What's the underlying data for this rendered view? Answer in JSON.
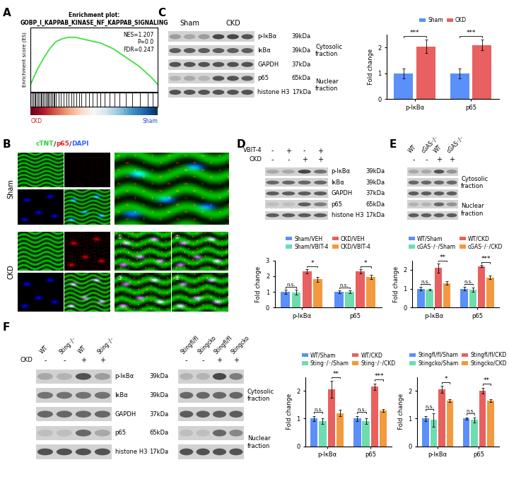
{
  "panels": [
    "A",
    "B",
    "C",
    "D",
    "E",
    "F"
  ],
  "chart_data": [
    {
      "type": "line",
      "title": "Enrichment plot:",
      "subtitle": "GOBP_I_KAPPAB_KINASE_NF_KAPPAB_SIGNALING",
      "ylabel": "Enrichment score (ES)",
      "annotations": [
        "NES=1.207",
        "P=0.0",
        "FDR=0.247"
      ],
      "rank_labels": [
        "CKD",
        "Sham"
      ],
      "color": "#3fe03f",
      "tick_labels": false,
      "x": [
        0,
        5,
        10,
        15,
        20,
        25,
        30,
        35,
        40,
        45,
        50,
        55,
        60,
        65,
        70,
        75,
        80,
        85,
        90,
        95,
        100
      ],
      "values": [
        0.0,
        0.1,
        0.18,
        0.25,
        0.3,
        0.32,
        0.33,
        0.33,
        0.32,
        0.31,
        0.3,
        0.29,
        0.27,
        0.25,
        0.22,
        0.19,
        0.16,
        0.13,
        0.09,
        0.05,
        0.0
      ],
      "hits": [
        1,
        2,
        3,
        4,
        5,
        6,
        7,
        8,
        9,
        10,
        11,
        12,
        13,
        14,
        15,
        16,
        17,
        18,
        19,
        20,
        22,
        24,
        26,
        28,
        30,
        32,
        34,
        36,
        38,
        40,
        43,
        46,
        49,
        52,
        55,
        58,
        62,
        66,
        70,
        75,
        80,
        86,
        92,
        96
      ],
      "xlim": [
        0,
        100
      ],
      "ylim": [
        -0.05,
        0.4
      ]
    },
    {
      "type": "bar",
      "ylabel": "Fold change",
      "categories": [
        "p-IκBα",
        "p65"
      ],
      "series": [
        {
          "name": "Sham",
          "color": "#5b8ff9",
          "values": [
            1.0,
            1.0
          ],
          "errors": [
            0.2,
            0.2
          ]
        },
        {
          "name": "CKD",
          "color": "#e8605f",
          "values": [
            2.05,
            2.1
          ],
          "errors": [
            0.25,
            0.2
          ]
        }
      ],
      "annotations": [
        {
          "category": "p-IκBα",
          "between": [
            "Sham",
            "CKD"
          ],
          "text": "***"
        },
        {
          "category": "p65",
          "between": [
            "Sham",
            "CKD"
          ],
          "text": "***"
        }
      ],
      "ylim": [
        0,
        2.5
      ],
      "yticks": [
        0,
        1,
        2
      ],
      "legend": "upper center"
    },
    {
      "type": "bar",
      "ylabel": "Fold change",
      "categories": [
        "p-IκBα",
        "p65"
      ],
      "series": [
        {
          "name": "Sham/VEH",
          "color": "#5b8ff9",
          "values": [
            1.0,
            1.0
          ],
          "errors": [
            0.12,
            0.1
          ]
        },
        {
          "name": "Sham/VBIT-4",
          "color": "#6fdcb0",
          "values": [
            0.97,
            1.0
          ],
          "errors": [
            0.15,
            0.08
          ]
        },
        {
          "name": "CKD/VEH",
          "color": "#e8605f",
          "values": [
            2.3,
            2.3
          ],
          "errors": [
            0.15,
            0.12
          ]
        },
        {
          "name": "CKD/VBIT-4",
          "color": "#f29a3f",
          "values": [
            1.8,
            1.95
          ],
          "errors": [
            0.15,
            0.12
          ]
        }
      ],
      "annotations": [
        {
          "category": "p-IκBα",
          "between": [
            "Sham/VEH",
            "Sham/VBIT-4"
          ],
          "text": "n.s."
        },
        {
          "category": "p-IκBα",
          "between": [
            "CKD/VEH",
            "CKD/VBIT-4"
          ],
          "text": "*"
        },
        {
          "category": "p65",
          "between": [
            "Sham/VEH",
            "Sham/VBIT-4"
          ],
          "text": "n.s."
        },
        {
          "category": "p65",
          "between": [
            "CKD/VEH",
            "CKD/VBIT-4"
          ],
          "text": "*"
        }
      ],
      "ylim": [
        0,
        3
      ],
      "yticks": [
        0,
        1,
        2,
        3
      ],
      "legend": "upper center"
    },
    {
      "type": "bar",
      "ylabel": "Fold change",
      "categories": [
        "p-IκBα",
        "p65"
      ],
      "series": [
        {
          "name": "WT/Sham",
          "color": "#5b8ff9",
          "values": [
            1.0,
            1.0
          ],
          "errors": [
            0.1,
            0.1
          ]
        },
        {
          "name": "cGAS⁻/⁻/Sham",
          "color": "#6fdcb0",
          "values": [
            0.95,
            0.95
          ],
          "errors": [
            0.05,
            0.1
          ]
        },
        {
          "name": "WT/CKD",
          "color": "#e8605f",
          "values": [
            2.1,
            2.2
          ],
          "errors": [
            0.25,
            0.05
          ]
        },
        {
          "name": "cGAS⁻/⁻/CKD",
          "color": "#f29a3f",
          "values": [
            1.3,
            1.6
          ],
          "errors": [
            0.1,
            0.08
          ]
        }
      ],
      "annotations": [
        {
          "category": "p-IκBα",
          "between": [
            "WT/Sham",
            "cGAS⁻/⁻/Sham"
          ],
          "text": "n.s."
        },
        {
          "category": "p-IκBα",
          "between": [
            "WT/CKD",
            "cGAS⁻/⁻/CKD"
          ],
          "text": "**"
        },
        {
          "category": "p65",
          "between": [
            "WT/Sham",
            "cGAS⁻/⁻/Sham"
          ],
          "text": "n.s."
        },
        {
          "category": "p65",
          "between": [
            "WT/CKD",
            "cGAS⁻/⁻/CKD"
          ],
          "text": "***"
        }
      ],
      "ylim": [
        0,
        2.5
      ],
      "yticks": [
        0,
        1,
        2
      ],
      "legend": "upper center"
    },
    {
      "type": "bar",
      "ylabel": "Fold change",
      "categories": [
        "p-IκBα",
        "p65"
      ],
      "series": [
        {
          "name": "WT/Sham",
          "color": "#5b8ff9",
          "values": [
            1.0,
            1.0
          ],
          "errors": [
            0.1,
            0.1
          ]
        },
        {
          "name": "Sting⁻/⁻/Sham",
          "color": "#6fdcb0",
          "values": [
            0.9,
            0.9
          ],
          "errors": [
            0.1,
            0.1
          ]
        },
        {
          "name": "WT/CKD",
          "color": "#e8605f",
          "values": [
            2.05,
            2.15
          ],
          "errors": [
            0.3,
            0.12
          ]
        },
        {
          "name": "Sting⁻/⁻/CKD",
          "color": "#f29a3f",
          "values": [
            1.2,
            1.3
          ],
          "errors": [
            0.12,
            0.05
          ]
        }
      ],
      "annotations": [
        {
          "category": "p-IκBα",
          "between": [
            "WT/Sham",
            "Sting⁻/⁻/Sham"
          ],
          "text": "n.s."
        },
        {
          "category": "p-IκBα",
          "between": [
            "WT/CKD",
            "Sting⁻/⁻/CKD"
          ],
          "text": "**"
        },
        {
          "category": "p65",
          "between": [
            "WT/Sham",
            "Sting⁻/⁻/Sham"
          ],
          "text": "n.s."
        },
        {
          "category": "p65",
          "between": [
            "WT/CKD",
            "Sting⁻/⁻/CKD"
          ],
          "text": "***"
        }
      ],
      "ylim": [
        0,
        2.5
      ],
      "yticks": [
        0,
        1,
        2
      ],
      "legend": "upper center"
    },
    {
      "type": "bar",
      "ylabel": "Fold change",
      "categories": [
        "p-IκBα",
        "p65"
      ],
      "series": [
        {
          "name": "Stingfl/fl/Sham",
          "color": "#5b8ff9",
          "values": [
            1.0,
            1.0
          ],
          "errors": [
            0.1,
            0.03
          ]
        },
        {
          "name": "Stingcko/Sham",
          "color": "#6fdcb0",
          "values": [
            0.95,
            0.95
          ],
          "errors": [
            0.25,
            0.08
          ]
        },
        {
          "name": "Stingfl/fl/CKD",
          "color": "#e8605f",
          "values": [
            2.05,
            2.0
          ],
          "errors": [
            0.12,
            0.1
          ]
        },
        {
          "name": "Stingcko/CKD",
          "color": "#f29a3f",
          "values": [
            1.65,
            1.65
          ],
          "errors": [
            0.05,
            0.05
          ]
        }
      ],
      "annotations": [
        {
          "category": "p-IκBα",
          "between": [
            "Stingfl/fl/Sham",
            "Stingcko/Sham"
          ],
          "text": "n.s."
        },
        {
          "category": "p-IκBα",
          "between": [
            "Stingfl/fl/CKD",
            "Stingcko/CKD"
          ],
          "text": "*"
        },
        {
          "category": "p65",
          "between": [
            "Stingfl/fl/Sham",
            "Stingcko/Sham"
          ],
          "text": "n.s."
        },
        {
          "category": "p65",
          "between": [
            "Stingfl/fl/CKD",
            "Stingcko/CKD"
          ],
          "text": "**"
        }
      ],
      "ylim": [
        0,
        2.5
      ],
      "yticks": [
        0,
        1,
        2
      ],
      "legend": "upper center"
    }
  ],
  "images": {
    "stain_parts": [
      "cTNT",
      "/",
      "p65",
      "/",
      "DAPI"
    ],
    "stain_colors": [
      "#2ecc40",
      "#222222",
      "#e02020",
      "#222222",
      "#3060ff"
    ],
    "rows": [
      "Sham",
      "CKD"
    ],
    "insets": [
      "①",
      "②",
      "③",
      "④"
    ]
  },
  "blots": [
    {
      "groups": [
        {
          "text": "Sham",
          "n": 3
        },
        {
          "text": "CKD",
          "n": 3
        }
      ],
      "rows": [
        {
          "protein": "p-IκBα",
          "kda": "39kDa",
          "intensity": [
            0.45,
            0.4,
            0.45,
            0.85,
            0.85,
            0.8
          ]
        },
        {
          "protein": "IκBα",
          "kda": "39kDa",
          "intensity": [
            0.75,
            0.75,
            0.75,
            0.75,
            0.75,
            0.75
          ]
        },
        {
          "protein": "GAPDH",
          "kda": "37kDa",
          "intensity": [
            0.8,
            0.8,
            0.8,
            0.8,
            0.8,
            0.8
          ]
        },
        {
          "protein": "p65",
          "kda": "65kDa",
          "intensity": [
            0.35,
            0.4,
            0.35,
            0.8,
            0.8,
            0.75
          ]
        },
        {
          "protein": "histone H3",
          "kda": "17kDa",
          "intensity": [
            0.8,
            0.8,
            0.8,
            0.8,
            0.8,
            0.8
          ]
        }
      ],
      "fractions": [
        {
          "text": "Cytosolic fraction",
          "rows": [
            0,
            1,
            2
          ]
        },
        {
          "text": "Nuclear fraction",
          "rows": [
            3,
            4
          ]
        }
      ]
    },
    {
      "conditions": [
        {
          "name": "VBIT-4",
          "signs": [
            "-",
            "+",
            "-",
            "+"
          ]
        },
        {
          "name": "CKD",
          "signs": [
            "-",
            "-",
            "+",
            "+"
          ]
        }
      ],
      "rows": [
        {
          "protein": "p-IκBα",
          "kda": "39kDa",
          "intensity": [
            0.4,
            0.4,
            0.85,
            0.65
          ]
        },
        {
          "protein": "IκBα",
          "kda": "39kDa",
          "intensity": [
            0.7,
            0.7,
            0.7,
            0.7
          ]
        },
        {
          "protein": "GAPDH",
          "kda": "37kDa",
          "intensity": [
            0.75,
            0.75,
            0.75,
            0.75
          ]
        },
        {
          "protein": "p65",
          "kda": "65kDa",
          "intensity": [
            0.3,
            0.3,
            0.75,
            0.6
          ]
        },
        {
          "protein": "histone H3",
          "kda": "17kDa",
          "intensity": [
            0.75,
            0.75,
            0.75,
            0.75
          ]
        }
      ]
    },
    {
      "lanes": [
        "WT",
        "cGAS⁻/⁻",
        "WT",
        "cGAS⁻/⁻"
      ],
      "conditions": [
        {
          "name": null,
          "signs": [
            "-",
            "-",
            "+",
            "+"
          ]
        }
      ],
      "rows": [
        {
          "intensity": [
            0.4,
            0.4,
            0.8,
            0.5
          ]
        },
        {
          "intensity": [
            0.7,
            0.7,
            0.7,
            0.7
          ]
        },
        {
          "intensity": [
            0.75,
            0.75,
            0.75,
            0.75
          ]
        },
        {
          "intensity": [
            0.35,
            0.35,
            0.7,
            0.5
          ]
        },
        {
          "intensity": [
            0.75,
            0.75,
            0.75,
            0.75
          ]
        }
      ],
      "fractions": [
        {
          "text": "Cytosolic fraction",
          "rows": [
            0,
            1,
            2
          ]
        },
        {
          "text": "Nuclear fraction",
          "rows": [
            3,
            4
          ]
        }
      ]
    },
    {
      "lanes": [
        "WT",
        "Sting⁻/⁻",
        "WT",
        "Sting⁻/⁻"
      ],
      "conditions": [
        {
          "name": "CKD",
          "signs": [
            "-",
            "-",
            "+",
            "+"
          ]
        }
      ],
      "rows": [
        {
          "protein": "p-IκBα",
          "kda": "39kDa",
          "intensity": [
            0.4,
            0.35,
            0.8,
            0.45
          ]
        },
        {
          "protein": "IκBα",
          "kda": "39kDa",
          "intensity": [
            0.65,
            0.65,
            0.65,
            0.65
          ]
        },
        {
          "protein": "GAPDH",
          "kda": "37kDa",
          "intensity": [
            0.7,
            0.7,
            0.7,
            0.7
          ]
        },
        {
          "protein": "p65",
          "kda": "65kDa",
          "intensity": [
            0.3,
            0.3,
            0.7,
            0.4
          ]
        },
        {
          "protein": "histone H3",
          "kda": "17kDa",
          "intensity": [
            0.8,
            0.8,
            0.8,
            0.8
          ]
        }
      ]
    },
    {
      "lanes": [
        "Stingfl/fl",
        "Stingcko",
        "Stingfl/fl",
        "Stingcko"
      ],
      "conditions": [
        {
          "name": null,
          "signs": [
            "-",
            "-",
            "+",
            "+"
          ]
        }
      ],
      "rows": [
        {
          "intensity": [
            0.35,
            0.35,
            0.85,
            0.6
          ]
        },
        {
          "intensity": [
            0.7,
            0.7,
            0.7,
            0.7
          ]
        },
        {
          "intensity": [
            0.75,
            0.75,
            0.75,
            0.75
          ]
        },
        {
          "intensity": [
            0.3,
            0.3,
            0.7,
            0.55
          ]
        },
        {
          "intensity": [
            0.8,
            0.8,
            0.8,
            0.8
          ]
        }
      ],
      "fractions": [
        {
          "text": "Cytosolic fraction",
          "rows": [
            0,
            1,
            2
          ]
        },
        {
          "text": "Nuclear fraction",
          "rows": [
            3,
            4
          ]
        }
      ]
    }
  ]
}
